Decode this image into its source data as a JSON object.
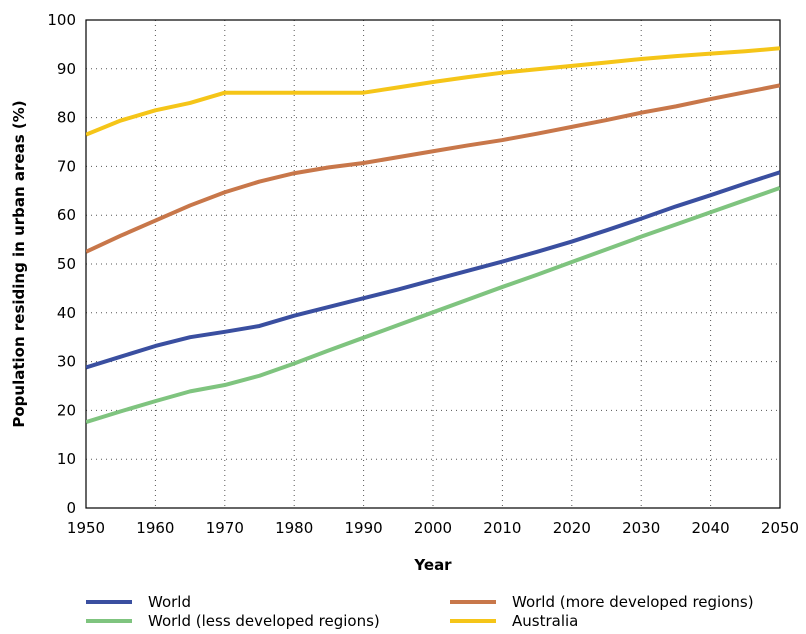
{
  "chart_data": {
    "type": "line",
    "title": "",
    "xlabel": "Year",
    "ylabel": "Population residing in urban areas (%)",
    "xlim": [
      1950,
      2050
    ],
    "ylim": [
      0,
      100
    ],
    "x_ticks": [
      "1950",
      "1960",
      "1970",
      "1980",
      "1990",
      "2000",
      "2010",
      "2020",
      "2030",
      "2040",
      "2050"
    ],
    "y_ticks": [
      "0",
      "10",
      "20",
      "30",
      "40",
      "50",
      "60",
      "70",
      "80",
      "90",
      "100"
    ],
    "grid": true,
    "legend_position": "bottom",
    "series": [
      {
        "name": "World",
        "color": "#3a4fa0",
        "points": [
          [
            1950,
            28.8
          ],
          [
            1955,
            31.0
          ],
          [
            1960,
            33.2
          ],
          [
            1965,
            35.0
          ],
          [
            1970,
            36.1
          ],
          [
            1975,
            37.3
          ],
          [
            1980,
            39.4
          ],
          [
            1985,
            41.2
          ],
          [
            1990,
            43.0
          ],
          [
            1995,
            44.8
          ],
          [
            2000,
            46.7
          ],
          [
            2005,
            48.6
          ],
          [
            2010,
            50.5
          ],
          [
            2015,
            52.5
          ],
          [
            2020,
            54.6
          ],
          [
            2025,
            56.9
          ],
          [
            2030,
            59.3
          ],
          [
            2035,
            61.8
          ],
          [
            2040,
            64.1
          ],
          [
            2045,
            66.5
          ],
          [
            2050,
            68.8
          ]
        ]
      },
      {
        "name": "World (more developed regions)",
        "color": "#c8774a",
        "points": [
          [
            1950,
            52.5
          ],
          [
            1955,
            55.8
          ],
          [
            1960,
            58.9
          ],
          [
            1965,
            62.0
          ],
          [
            1970,
            64.7
          ],
          [
            1975,
            66.9
          ],
          [
            1980,
            68.6
          ],
          [
            1985,
            69.8
          ],
          [
            1990,
            70.7
          ],
          [
            1995,
            71.9
          ],
          [
            2000,
            73.1
          ],
          [
            2005,
            74.3
          ],
          [
            2010,
            75.4
          ],
          [
            2015,
            76.7
          ],
          [
            2020,
            78.1
          ],
          [
            2025,
            79.5
          ],
          [
            2030,
            81.0
          ],
          [
            2035,
            82.3
          ],
          [
            2040,
            83.8
          ],
          [
            2045,
            85.2
          ],
          [
            2050,
            86.6
          ]
        ]
      },
      {
        "name": "World (less developed regions)",
        "color": "#7fc47f",
        "points": [
          [
            1950,
            17.6
          ],
          [
            1955,
            19.8
          ],
          [
            1960,
            21.9
          ],
          [
            1965,
            23.9
          ],
          [
            1970,
            25.2
          ],
          [
            1975,
            27.1
          ],
          [
            1980,
            29.6
          ],
          [
            1985,
            32.3
          ],
          [
            1990,
            34.9
          ],
          [
            1995,
            37.5
          ],
          [
            2000,
            40.1
          ],
          [
            2005,
            42.7
          ],
          [
            2010,
            45.3
          ],
          [
            2015,
            47.8
          ],
          [
            2020,
            50.4
          ],
          [
            2025,
            53.0
          ],
          [
            2030,
            55.6
          ],
          [
            2035,
            58.1
          ],
          [
            2040,
            60.6
          ],
          [
            2045,
            63.1
          ],
          [
            2050,
            65.6
          ]
        ]
      },
      {
        "name": "Australia",
        "color": "#f5c518",
        "points": [
          [
            1950,
            76.5
          ],
          [
            1955,
            79.4
          ],
          [
            1960,
            81.5
          ],
          [
            1965,
            83.0
          ],
          [
            1970,
            85.1
          ],
          [
            1975,
            85.1
          ],
          [
            1980,
            85.1
          ],
          [
            1985,
            85.1
          ],
          [
            1990,
            85.1
          ],
          [
            1995,
            86.2
          ],
          [
            2000,
            87.3
          ],
          [
            2005,
            88.3
          ],
          [
            2010,
            89.2
          ],
          [
            2015,
            89.9
          ],
          [
            2020,
            90.6
          ],
          [
            2025,
            91.3
          ],
          [
            2030,
            92.0
          ],
          [
            2035,
            92.6
          ],
          [
            2040,
            93.1
          ],
          [
            2045,
            93.6
          ],
          [
            2050,
            94.2
          ]
        ]
      }
    ]
  }
}
